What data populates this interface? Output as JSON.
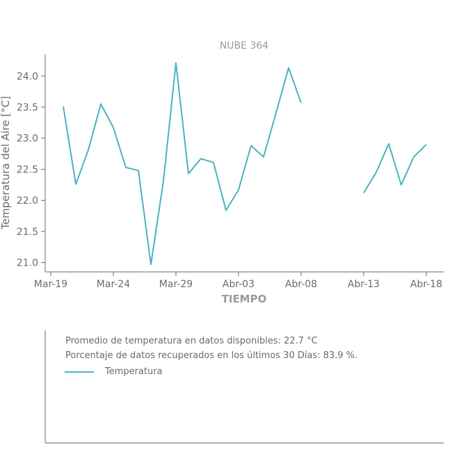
{
  "chart_data": {
    "type": "line",
    "title": "NUBE 364",
    "xlabel": "TIEMPO",
    "ylabel": "Temperatura del Aire [°C]",
    "ylim": [
      20.85,
      24.35
    ],
    "y_ticks": [
      "21.0",
      "21.5",
      "22.0",
      "22.5",
      "23.0",
      "23.5",
      "24.0"
    ],
    "x_ticks": [
      "Mar-19",
      "Mar-24",
      "Mar-29",
      "Abr-03",
      "Abr-08",
      "Abr-13",
      "Abr-18"
    ],
    "x_start": "2019-03-19",
    "grid": false,
    "series": [
      {
        "name": "Temperatura",
        "color": "#4ab3c0",
        "segments": [
          [
            {
              "x": "Mar-20",
              "y": 23.51
            },
            {
              "x": "Mar-21",
              "y": 22.26
            },
            {
              "x": "Mar-22",
              "y": 22.81
            },
            {
              "x": "Mar-23",
              "y": 23.55
            },
            {
              "x": "Mar-24",
              "y": 23.17
            },
            {
              "x": "Mar-25",
              "y": 22.53
            },
            {
              "x": "Mar-26",
              "y": 22.48
            },
            {
              "x": "Mar-27",
              "y": 20.97
            },
            {
              "x": "Mar-28",
              "y": 22.31
            },
            {
              "x": "Mar-29",
              "y": 24.21
            },
            {
              "x": "Mar-30",
              "y": 22.43
            },
            {
              "x": "Mar-31",
              "y": 22.67
            },
            {
              "x": "Abr-01",
              "y": 22.61
            },
            {
              "x": "Abr-02",
              "y": 21.84
            },
            {
              "x": "Abr-03",
              "y": 22.17
            },
            {
              "x": "Abr-04",
              "y": 22.88
            },
            {
              "x": "Abr-05",
              "y": 22.7
            },
            {
              "x": "Abr-06",
              "y": 23.41
            },
            {
              "x": "Abr-07",
              "y": 24.13
            },
            {
              "x": "Abr-08",
              "y": 23.57
            }
          ],
          [
            {
              "x": "Abr-13",
              "y": 22.12
            },
            {
              "x": "Abr-14",
              "y": 22.45
            },
            {
              "x": "Abr-15",
              "y": 22.91
            },
            {
              "x": "Abr-16",
              "y": 22.25
            },
            {
              "x": "Abr-17",
              "y": 22.7
            },
            {
              "x": "Abr-18",
              "y": 22.9
            }
          ]
        ]
      }
    ]
  },
  "info": {
    "line1": "Promedio de temperatura en datos disponibles: 22.7 °C",
    "line2": "Porcentaje de datos recuperados en los últimos 30 Días: 83.9 %.",
    "legend_label": "Temperatura"
  }
}
